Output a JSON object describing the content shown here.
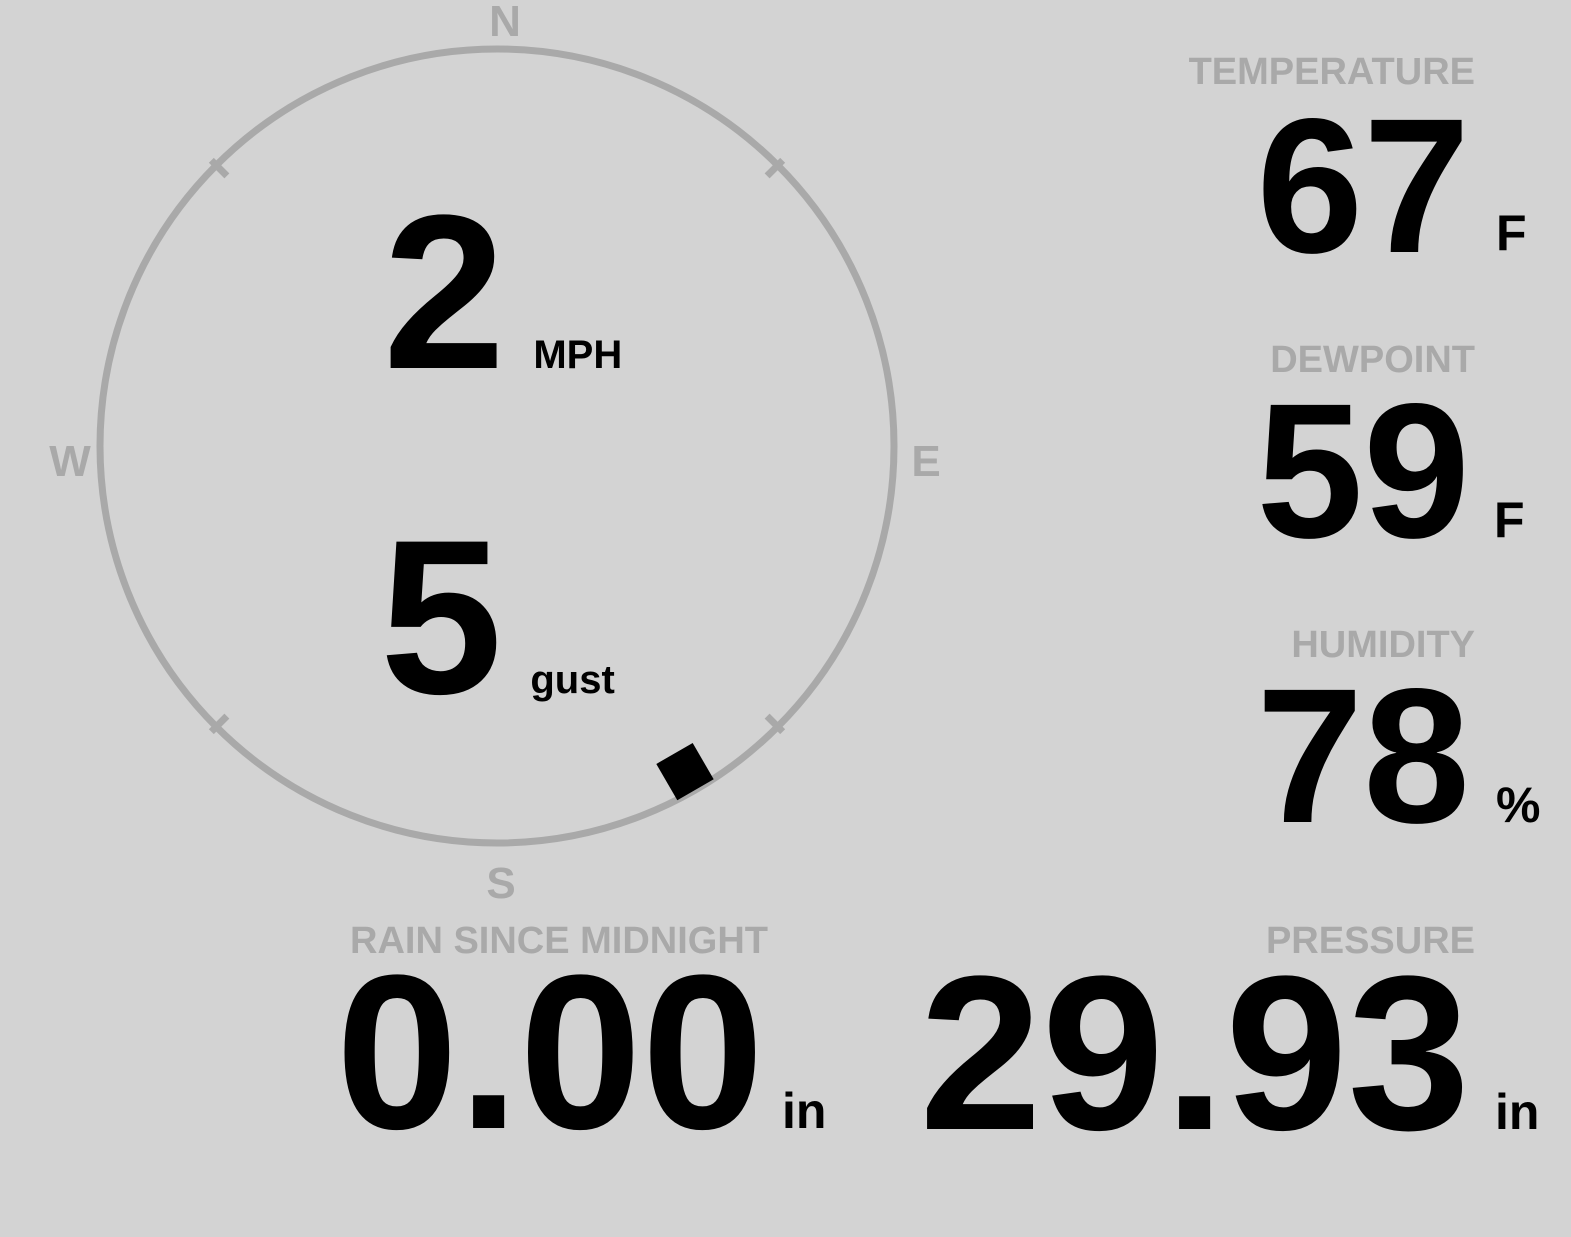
{
  "colors": {
    "background": "#d3d3d3",
    "muted": "#a9a9a9",
    "text": "#000000"
  },
  "compass": {
    "cardinals": {
      "north": "N",
      "east": "E",
      "south": "S",
      "west": "W"
    },
    "wind_speed": {
      "value": "2",
      "unit": "MPH"
    },
    "wind_gust": {
      "value": "5",
      "unit": "gust"
    },
    "wind_direction_degrees": 150
  },
  "metrics": {
    "temperature": {
      "label": "TEMPERATURE",
      "value": "67",
      "unit": "F"
    },
    "dewpoint": {
      "label": "DEWPOINT",
      "value": "59",
      "unit": "F"
    },
    "humidity": {
      "label": "HUMIDITY",
      "value": "78",
      "unit": "%"
    },
    "rain": {
      "label": "RAIN SINCE MIDNIGHT",
      "value": "0.00",
      "unit": "in"
    },
    "pressure": {
      "label": "PRESSURE",
      "value": "29.93",
      "unit": "in"
    }
  }
}
